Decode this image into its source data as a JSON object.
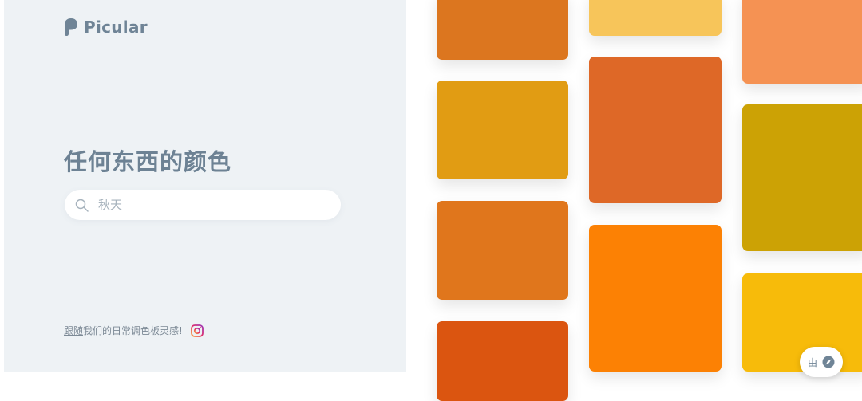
{
  "brand": {
    "name": "Picular",
    "color": "#6f8496"
  },
  "headline": "任何东西的颜色",
  "search": {
    "value": "",
    "placeholder": "秋天"
  },
  "footer": {
    "link_text": "跟随",
    "text": "我们的日常调色板灵感!"
  },
  "badge": {
    "text": "由"
  },
  "swatches": [
    {
      "color": "#dc761f"
    },
    {
      "color": "#e19c13"
    },
    {
      "color": "#e0761c"
    },
    {
      "color": "#db5510"
    },
    {
      "color": "#f7c55a"
    },
    {
      "color": "#de6827"
    },
    {
      "color": "#fc8104"
    },
    {
      "color": "#f59253"
    },
    {
      "color": "#cca205"
    },
    {
      "color": "#f7bb0a"
    }
  ]
}
